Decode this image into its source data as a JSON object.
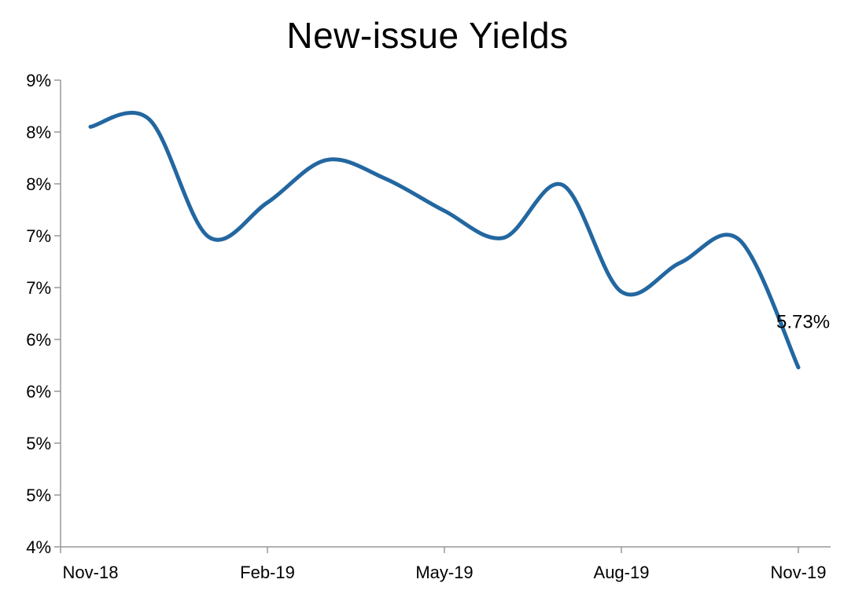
{
  "chart_data": {
    "type": "line",
    "title": "New-issue Yields",
    "xlabel": "",
    "ylabel": "",
    "x_ticks": [
      "Nov-18",
      "Feb-19",
      "May-19",
      "Aug-19",
      "Nov-19"
    ],
    "y_ticks": [
      "4%",
      "5%",
      "5%",
      "6%",
      "6%",
      "7%",
      "7%",
      "8%",
      "8%",
      "9%"
    ],
    "ylim": [
      4.0,
      8.5
    ],
    "grid": false,
    "legend": "none",
    "series_color": "#2367a0",
    "series": [
      {
        "x": [
          "2018-11",
          "2018-12",
          "2019-01",
          "2019-02",
          "2019-03",
          "2019-04",
          "2019-05",
          "2019-06",
          "2019-07",
          "2019-08",
          "2019-09",
          "2019-10",
          "2019-11"
        ],
        "values": [
          8.05,
          8.12,
          6.99,
          7.32,
          7.73,
          7.55,
          7.24,
          6.98,
          7.49,
          6.46,
          6.74,
          6.96,
          5.73
        ]
      }
    ],
    "annotations": [
      {
        "text": "5.73%",
        "series_index": 0,
        "point_index": 12
      }
    ]
  }
}
